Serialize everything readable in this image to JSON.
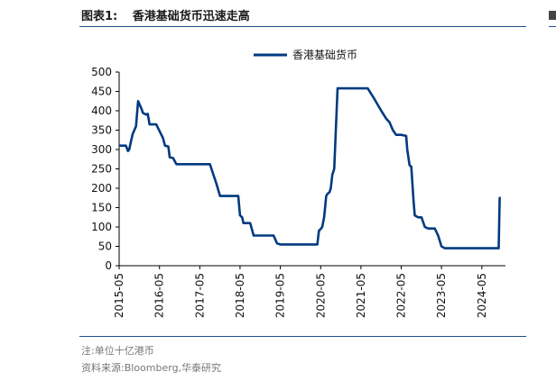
{
  "header": {
    "figure_label": "图表1:",
    "title": "香港基础货币迅速走高"
  },
  "footer": {
    "note": "注:单位十亿港币",
    "source": "资料来源:Bloomberg,华泰研究"
  },
  "chart_data": {
    "type": "line",
    "title": "香港基础货币迅速走高",
    "ylim": [
      0,
      500
    ],
    "yticks": [
      0,
      50,
      100,
      150,
      200,
      250,
      300,
      350,
      400,
      450,
      500
    ],
    "xticks": [
      "2015-05",
      "2016-05",
      "2017-05",
      "2018-05",
      "2019-05",
      "2020-05",
      "2021-05",
      "2022-05",
      "2023-05",
      "2024-05"
    ],
    "legend_position": "top-center",
    "series": [
      {
        "name": "香港基础货币",
        "color": "#003a80",
        "points": [
          [
            "2015-05-01",
            310
          ],
          [
            "2015-06-01",
            310
          ],
          [
            "2015-07-01",
            310
          ],
          [
            "2015-07-20",
            296
          ],
          [
            "2015-08-01",
            300
          ],
          [
            "2015-08-15",
            320
          ],
          [
            "2015-09-01",
            340
          ],
          [
            "2015-10-01",
            360
          ],
          [
            "2015-10-20",
            425
          ],
          [
            "2015-11-20",
            405
          ],
          [
            "2015-12-01",
            395
          ],
          [
            "2016-01-01",
            390
          ],
          [
            "2016-01-15",
            392
          ],
          [
            "2016-02-01",
            365
          ],
          [
            "2016-03-01",
            365
          ],
          [
            "2016-04-01",
            365
          ],
          [
            "2016-05-01",
            348
          ],
          [
            "2016-06-01",
            330
          ],
          [
            "2016-06-20",
            310
          ],
          [
            "2016-07-20",
            308
          ],
          [
            "2016-08-01",
            280
          ],
          [
            "2016-09-01",
            278
          ],
          [
            "2016-10-01",
            262
          ],
          [
            "2016-11-01",
            262
          ],
          [
            "2017-01-01",
            262
          ],
          [
            "2017-03-01",
            262
          ],
          [
            "2017-05-01",
            262
          ],
          [
            "2017-07-01",
            262
          ],
          [
            "2017-08-01",
            262
          ],
          [
            "2017-09-01",
            235
          ],
          [
            "2017-10-01",
            210
          ],
          [
            "2017-11-01",
            180
          ],
          [
            "2018-01-01",
            180
          ],
          [
            "2018-03-01",
            180
          ],
          [
            "2018-04-15",
            180
          ],
          [
            "2018-05-01",
            130
          ],
          [
            "2018-05-20",
            125
          ],
          [
            "2018-06-01",
            110
          ],
          [
            "2018-07-01",
            110
          ],
          [
            "2018-08-01",
            110
          ],
          [
            "2018-09-01",
            78
          ],
          [
            "2018-11-01",
            78
          ],
          [
            "2019-01-01",
            78
          ],
          [
            "2019-03-01",
            78
          ],
          [
            "2019-04-01",
            58
          ],
          [
            "2019-05-01",
            55
          ],
          [
            "2019-07-01",
            55
          ],
          [
            "2019-10-01",
            55
          ],
          [
            "2020-01-01",
            55
          ],
          [
            "2020-03-01",
            55
          ],
          [
            "2020-04-01",
            55
          ],
          [
            "2020-04-15",
            90
          ],
          [
            "2020-05-01",
            95
          ],
          [
            "2020-05-15",
            100
          ],
          [
            "2020-06-01",
            125
          ],
          [
            "2020-06-20",
            180
          ],
          [
            "2020-07-01",
            185
          ],
          [
            "2020-07-20",
            190
          ],
          [
            "2020-08-01",
            200
          ],
          [
            "2020-08-15",
            235
          ],
          [
            "2020-09-01",
            250
          ],
          [
            "2020-09-20",
            380
          ],
          [
            "2020-10-01",
            458
          ],
          [
            "2021-01-01",
            458
          ],
          [
            "2021-04-01",
            458
          ],
          [
            "2021-07-01",
            458
          ],
          [
            "2021-09-01",
            430
          ],
          [
            "2021-11-01",
            400
          ],
          [
            "2021-12-15",
            380
          ],
          [
            "2022-01-15",
            370
          ],
          [
            "2022-02-15",
            350
          ],
          [
            "2022-03-15",
            338
          ],
          [
            "2022-05-01",
            338
          ],
          [
            "2022-06-15",
            335
          ],
          [
            "2022-06-25",
            300
          ],
          [
            "2022-07-15",
            260
          ],
          [
            "2022-08-01",
            255
          ],
          [
            "2022-08-20",
            170
          ],
          [
            "2022-09-01",
            130
          ],
          [
            "2022-10-01",
            125
          ],
          [
            "2022-11-01",
            125
          ],
          [
            "2022-12-01",
            100
          ],
          [
            "2023-01-01",
            96
          ],
          [
            "2023-02-01",
            96
          ],
          [
            "2023-03-01",
            96
          ],
          [
            "2023-04-01",
            78
          ],
          [
            "2023-05-01",
            50
          ],
          [
            "2023-06-01",
            45
          ],
          [
            "2023-08-01",
            45
          ],
          [
            "2023-11-01",
            45
          ],
          [
            "2024-02-01",
            45
          ],
          [
            "2024-05-01",
            45
          ],
          [
            "2024-08-01",
            45
          ],
          [
            "2024-09-15",
            45
          ],
          [
            "2024-10-01",
            45
          ],
          [
            "2024-10-10",
            175
          ],
          [
            "2024-10-20",
            175
          ]
        ]
      }
    ]
  }
}
